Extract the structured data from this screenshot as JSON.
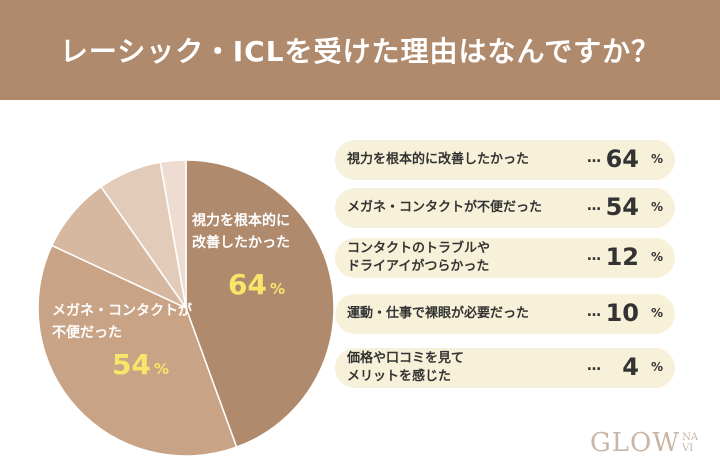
{
  "chart_data": {
    "type": "pie",
    "title": "レーシック・ICLを受けた理由はなんですか？",
    "categories": [
      "視力を根本的に改善したかった",
      "メガネ・コンタクトが不便だった",
      "コンタクトのトラブルや\nドライアイがつらかった",
      "運動・仕事で裸眼が必要だった",
      "価格や口コミを見て\nメリットを感じた"
    ],
    "values": [
      64,
      54,
      12,
      10,
      4
    ],
    "colors": [
      "#b08a6d",
      "#c8a386",
      "#d6b8a0",
      "#e2cbb9",
      "#eddccf"
    ],
    "unit": "%",
    "leader": "…",
    "annotations": [
      {
        "text": "視力を根本的に\n改善したかった",
        "index": 0
      },
      {
        "text": "メガネ・コンタクトが\n不便だった",
        "index": 1
      }
    ]
  },
  "logo": {
    "main": "GLOW",
    "sub_top": "NA",
    "sub_bottom": "VI"
  }
}
